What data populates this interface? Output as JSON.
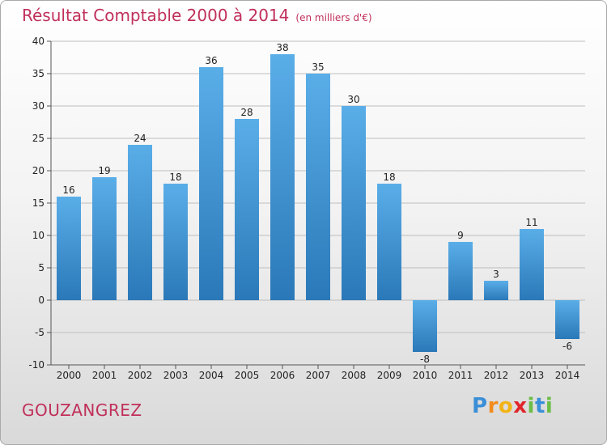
{
  "header": {
    "title": "Résultat Comptable 2000 à 2014",
    "unit": "(en milliers d'€)"
  },
  "footer": {
    "commune": "GOUZANGREZ",
    "logo_letters": [
      "P",
      "r",
      "o",
      "x",
      "i",
      "t",
      "i"
    ],
    "logo_colors": [
      "#3a8fd6",
      "#f28c1c",
      "#f2b316",
      "#e0252b",
      "#6cbd45",
      "#3a8fd6",
      "#6cbd45"
    ]
  },
  "colors": {
    "title": "#c0305a",
    "bar_light": "#5aaee8",
    "bar_dark": "#2a78b8",
    "grid": "#bdbdbd"
  },
  "chart_data": {
    "type": "bar",
    "title": "Résultat Comptable 2000 à 2014",
    "xlabel": "",
    "ylabel": "",
    "categories": [
      "2000",
      "2001",
      "2002",
      "2003",
      "2004",
      "2005",
      "2006",
      "2007",
      "2008",
      "2009",
      "2010",
      "2011",
      "2012",
      "2013",
      "2014"
    ],
    "values": [
      16,
      19,
      24,
      18,
      36,
      28,
      38,
      35,
      30,
      18,
      -8,
      9,
      3,
      11,
      -6
    ],
    "ylim": [
      -10,
      40
    ],
    "yticks": [
      -10,
      -5,
      0,
      5,
      10,
      15,
      20,
      25,
      30,
      35,
      40
    ],
    "grid": true
  }
}
